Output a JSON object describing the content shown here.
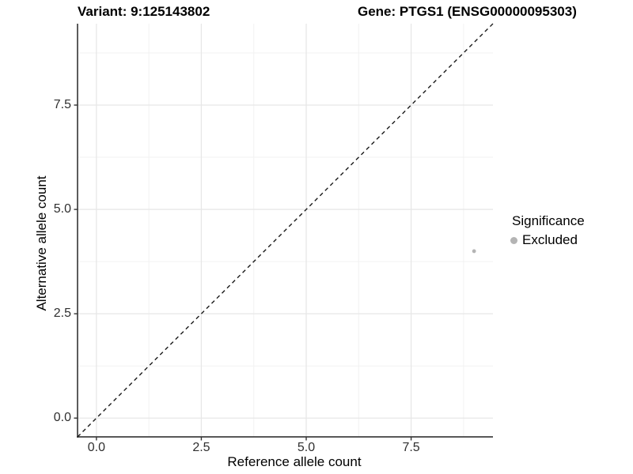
{
  "chart_data": {
    "type": "scatter",
    "titles": {
      "left": "Variant: 9:125143802",
      "right": "Gene: PTGS1 (ENSG00000095303)"
    },
    "xlabel": "Reference allele count",
    "ylabel": "Alternative allele count",
    "xlim": [
      -0.45,
      9.45
    ],
    "ylim": [
      -0.45,
      9.45
    ],
    "x_ticks": [
      0.0,
      2.5,
      5.0,
      7.5
    ],
    "x_tick_labels": [
      "0.0",
      "2.5",
      "5.0",
      "7.5"
    ],
    "y_ticks": [
      0.0,
      2.5,
      5.0,
      7.5
    ],
    "y_tick_labels": [
      "0.0",
      "2.5",
      "5.0",
      "7.5"
    ],
    "x_minor_ticks": [
      1.25,
      3.75,
      6.25,
      8.75
    ],
    "y_minor_ticks": [
      1.25,
      3.75,
      6.25,
      8.75
    ],
    "grid": "major+minor",
    "reference_line": {
      "kind": "identity-diagonal",
      "style": "dashed"
    },
    "series": [
      {
        "name": "Excluded",
        "color": "#b4b4b4",
        "points": [
          {
            "x": 9,
            "y": 4
          }
        ]
      }
    ],
    "legend": {
      "position": "right",
      "title": "Significance",
      "entries": [
        {
          "label": "Excluded",
          "color": "#b4b4b4"
        }
      ]
    },
    "colors": {
      "background": "#ffffff",
      "point": "#b4b4b4",
      "grid_major": "#e7e7e7",
      "grid_minor": "#f2f2f2",
      "axis_line": "#404040",
      "tick_mark": "#333333",
      "reference_line": "#1a1a1a"
    }
  }
}
